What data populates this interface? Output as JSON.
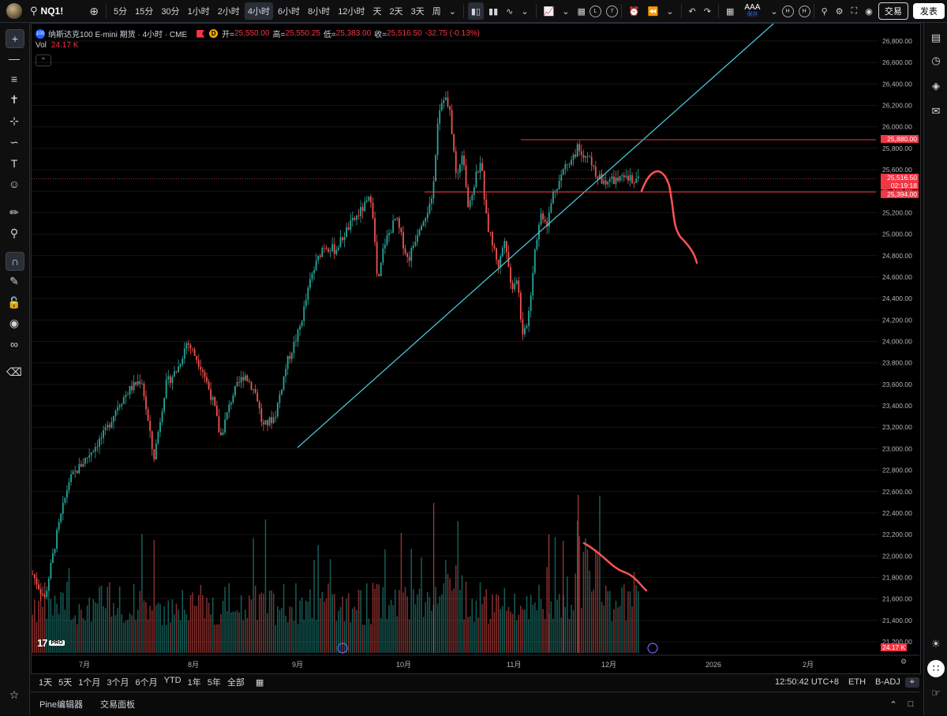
{
  "header": {
    "symbol": "NQ1!",
    "timeframes": [
      "5分",
      "15分",
      "30分",
      "1小时",
      "2小时",
      "4小时",
      "6小时",
      "8小时",
      "12小时",
      "天",
      "2天",
      "3天",
      "周"
    ],
    "active_timeframe": "4小时",
    "badges": [
      "L",
      "7"
    ],
    "account_label": "AAA",
    "account_sub": "保存",
    "h_badges": [
      "H",
      "H"
    ],
    "trade_label": "交易",
    "publish_label": "发表"
  },
  "legend": {
    "title": "纳斯达克100 E-mini 期货 · 4小时 · CME",
    "logo_text": "100",
    "d_badge": "D",
    "open_label": "开=",
    "open": "25,550.00",
    "high_label": "高=",
    "high": "25,550.25",
    "low_label": "低=",
    "low": "25,383.00",
    "close_label": "收=",
    "close": "25,516.50",
    "change": "-32.75 (-0.13%)",
    "vol_label": "Vol",
    "vol_value": "24.17 K"
  },
  "chart_data": {
    "type": "candlestick",
    "price_axis": [
      "26,800.00",
      "26,600.00",
      "26,400.00",
      "26,200.00",
      "26,000.00",
      "25,800.00",
      "25,600.00",
      "25,400.00",
      "25,200.00",
      "25,000.00",
      "24,800.00",
      "24,600.00",
      "24,400.00",
      "24,200.00",
      "24,000.00",
      "23,800.00",
      "23,600.00",
      "23,400.00",
      "23,200.00",
      "23,000.00",
      "22,800.00",
      "22,600.00",
      "22,400.00",
      "22,200.00",
      "22,000.00",
      "21,800.00",
      "21,600.00",
      "21,400.00",
      "21,200.00"
    ],
    "time_axis": [
      "7月",
      "8月",
      "9月",
      "10月",
      "11月",
      "12月",
      "2026",
      "2月"
    ],
    "horizontal_levels": [
      {
        "price": 25880,
        "label": "25,880.00",
        "color": "#f23645"
      },
      {
        "price": 25394,
        "label": "25,394.00",
        "color": "#f23645"
      }
    ],
    "last_price": {
      "price": 25516.5,
      "label": "25,516.50",
      "countdown": "02:19:18"
    },
    "volume_label": "24.17 K",
    "path_keypoints": [
      [
        0,
        21830
      ],
      [
        0.02,
        21600
      ],
      [
        0.04,
        22200
      ],
      [
        0.06,
        22700
      ],
      [
        0.08,
        22850
      ],
      [
        0.1,
        23000
      ],
      [
        0.12,
        23150
      ],
      [
        0.14,
        23400
      ],
      [
        0.16,
        23550
      ],
      [
        0.18,
        23650
      ],
      [
        0.2,
        22900
      ],
      [
        0.22,
        23600
      ],
      [
        0.24,
        23750
      ],
      [
        0.255,
        24000
      ],
      [
        0.28,
        23750
      ],
      [
        0.3,
        23400
      ],
      [
        0.31,
        23100
      ],
      [
        0.33,
        23500
      ],
      [
        0.35,
        23700
      ],
      [
        0.37,
        23500
      ],
      [
        0.38,
        23200
      ],
      [
        0.4,
        23300
      ],
      [
        0.42,
        23800
      ],
      [
        0.44,
        24100
      ],
      [
        0.46,
        24600
      ],
      [
        0.48,
        24900
      ],
      [
        0.5,
        24850
      ],
      [
        0.52,
        25050
      ],
      [
        0.54,
        25200
      ],
      [
        0.56,
        25350
      ],
      [
        0.57,
        24500
      ],
      [
        0.58,
        24900
      ],
      [
        0.6,
        25150
      ],
      [
        0.62,
        24750
      ],
      [
        0.64,
        25100
      ],
      [
        0.66,
        25300
      ],
      [
        0.67,
        26150
      ],
      [
        0.68,
        26300
      ],
      [
        0.69,
        26100
      ],
      [
        0.7,
        25500
      ],
      [
        0.71,
        25800
      ],
      [
        0.72,
        25200
      ],
      [
        0.73,
        25500
      ],
      [
        0.74,
        25700
      ],
      [
        0.75,
        25100
      ],
      [
        0.76,
        24900
      ],
      [
        0.77,
        24700
      ],
      [
        0.78,
        25000
      ],
      [
        0.79,
        24500
      ],
      [
        0.8,
        24600
      ],
      [
        0.81,
        24000
      ],
      [
        0.82,
        24300
      ],
      [
        0.83,
        24900
      ],
      [
        0.84,
        25200
      ],
      [
        0.85,
        25100
      ],
      [
        0.86,
        25400
      ],
      [
        0.87,
        25500
      ],
      [
        0.88,
        25650
      ],
      [
        0.89,
        25700
      ],
      [
        0.9,
        25800
      ],
      [
        0.91,
        25750
      ],
      [
        0.92,
        25700
      ],
      [
        0.93,
        25550
      ],
      [
        0.94,
        25500
      ],
      [
        1.0,
        25516
      ]
    ]
  },
  "bottom_bar": {
    "ranges": [
      "1天",
      "5天",
      "1个月",
      "3个月",
      "6个月",
      "YTD",
      "1年",
      "5年",
      "全部"
    ],
    "time": "12:50:42 UTC+8",
    "session": "ETH",
    "adj": "B-ADJ"
  },
  "footer": {
    "tabs": [
      "Pine编辑器",
      "交易面板"
    ]
  },
  "icons": {
    "left_toolbar": [
      "crosshair-icon",
      "trend-line-icon",
      "horizontal-lines-icon",
      "pattern-icon",
      "fib-icon",
      "brush-icon",
      "text-icon",
      "emoji-icon",
      "ruler-icon",
      "zoom-icon",
      "magnet-icon",
      "lock-draw-icon",
      "lock-icon",
      "eye-icon",
      "link-icon",
      "trash-icon",
      "star-icon"
    ],
    "right_toolbar": [
      "watchlist-icon",
      "alerts-icon",
      "layers-icon",
      "chat-icon",
      "bulb-icon",
      "apps-icon",
      "notifications-icon"
    ]
  },
  "colors": {
    "up": "#26a69a",
    "down": "#ef5350",
    "trendline": "#4dd0e1",
    "level": "#f23645",
    "annotation": "#ff5252"
  }
}
